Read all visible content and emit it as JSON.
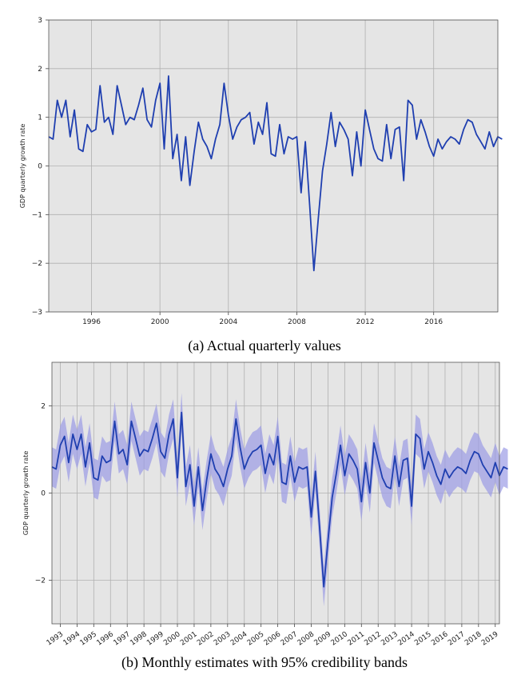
{
  "captions": {
    "a": "(a) Actual quarterly values",
    "b": "(b) Monthly estimates with 95% credibility bands"
  },
  "colors": {
    "panel_bg": "#e5e5e5",
    "grid": "#b0b0b0",
    "line": "#1f3fb0",
    "band": "#9b9be6"
  },
  "chart_data": [
    {
      "type": "line",
      "xlabel": "",
      "ylabel": "GDP quarterly growth rate",
      "xlim": [
        1993.5,
        2019.75
      ],
      "ylim": [
        -3,
        3
      ],
      "yticks": [
        -3,
        -2,
        -1,
        0,
        1,
        2,
        3
      ],
      "xticks": [
        "1996",
        "2000",
        "2004",
        "2008",
        "2012",
        "2016"
      ],
      "grid": true,
      "series": [
        {
          "x_start": 1993.5,
          "x_step": 0.25,
          "values": [
            0.6,
            0.55,
            1.35,
            1.0,
            1.35,
            0.6,
            1.15,
            0.35,
            0.3,
            0.85,
            0.7,
            0.75,
            1.65,
            0.9,
            1.0,
            0.65,
            1.65,
            1.25,
            0.85,
            1.0,
            0.95,
            1.25,
            1.6,
            0.95,
            0.8,
            1.35,
            1.7,
            0.35,
            1.85,
            0.15,
            0.65,
            -0.3,
            0.6,
            -0.4,
            0.3,
            0.9,
            0.55,
            0.4,
            0.15,
            0.55,
            0.85,
            1.7,
            1.05,
            0.55,
            0.8,
            0.95,
            1.0,
            1.1,
            0.45,
            0.9,
            0.65,
            1.3,
            0.25,
            0.2,
            0.85,
            0.25,
            0.6,
            0.55,
            0.6,
            -0.55,
            0.5,
            -0.8,
            -2.15,
            -1.1,
            -0.1,
            0.45,
            1.1,
            0.4,
            0.9,
            0.75,
            0.55,
            -0.2,
            0.7,
            0.0,
            1.15,
            0.75,
            0.35,
            0.15,
            0.1,
            0.85,
            0.15,
            0.75,
            0.8,
            -0.3,
            1.35,
            1.25,
            0.55,
            0.95,
            0.7,
            0.4,
            0.2,
            0.55,
            0.35,
            0.5,
            0.6,
            0.55,
            0.45,
            0.75,
            0.95,
            0.9,
            0.65,
            0.5,
            0.35,
            0.7,
            0.4,
            0.6,
            0.55
          ]
        }
      ]
    },
    {
      "type": "line",
      "xlabel": "",
      "ylabel": "GDP quarterly growth rate",
      "xlim": [
        1993.0,
        2019.75
      ],
      "ylim": [
        -3,
        3
      ],
      "yticks": [
        -2,
        0,
        2
      ],
      "xticks": [
        "1993",
        "1994",
        "1995",
        "1996",
        "1997",
        "1998",
        "1999",
        "2000",
        "2001",
        "2002",
        "2003",
        "2004",
        "2005",
        "2006",
        "2007",
        "2008",
        "2009",
        "2010",
        "2011",
        "2012",
        "2013",
        "2014",
        "2015",
        "2016",
        "2017",
        "2018",
        "2019"
      ],
      "grid": true,
      "band": "95% credibility bands",
      "series": [
        {
          "x_start": 1993.0,
          "x_step": 0.25,
          "band_halfwidth": 0.45,
          "values": [
            0.6,
            0.55,
            1.1,
            1.3,
            0.7,
            1.35,
            1.0,
            1.35,
            0.6,
            1.15,
            0.35,
            0.3,
            0.85,
            0.7,
            0.75,
            1.65,
            0.9,
            1.0,
            0.65,
            1.65,
            1.25,
            0.85,
            1.0,
            0.95,
            1.25,
            1.6,
            0.95,
            0.8,
            1.35,
            1.7,
            0.35,
            1.85,
            0.15,
            0.65,
            -0.3,
            0.6,
            -0.4,
            0.3,
            0.9,
            0.55,
            0.4,
            0.15,
            0.55,
            0.85,
            1.7,
            1.05,
            0.55,
            0.8,
            0.95,
            1.0,
            1.1,
            0.45,
            0.9,
            0.65,
            1.3,
            0.25,
            0.2,
            0.85,
            0.25,
            0.6,
            0.55,
            0.6,
            -0.55,
            0.5,
            -0.8,
            -2.15,
            -1.1,
            -0.1,
            0.45,
            1.1,
            0.4,
            0.9,
            0.75,
            0.55,
            -0.2,
            0.7,
            0.0,
            1.15,
            0.75,
            0.35,
            0.15,
            0.1,
            0.85,
            0.15,
            0.75,
            0.8,
            -0.3,
            1.35,
            1.25,
            0.55,
            0.95,
            0.7,
            0.4,
            0.2,
            0.55,
            0.35,
            0.5,
            0.6,
            0.55,
            0.45,
            0.75,
            0.95,
            0.9,
            0.65,
            0.5,
            0.35,
            0.7,
            0.4,
            0.6,
            0.55
          ]
        }
      ]
    }
  ]
}
